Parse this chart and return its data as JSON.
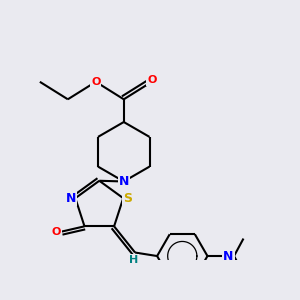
{
  "bg_color": "#eaeaf0",
  "bond_color": "#000000",
  "atom_colors": {
    "N": "#0000ff",
    "O": "#ff0000",
    "S": "#ccaa00",
    "H": "#008080",
    "C": "#000000"
  },
  "line_width": 1.5,
  "font_size": 9
}
